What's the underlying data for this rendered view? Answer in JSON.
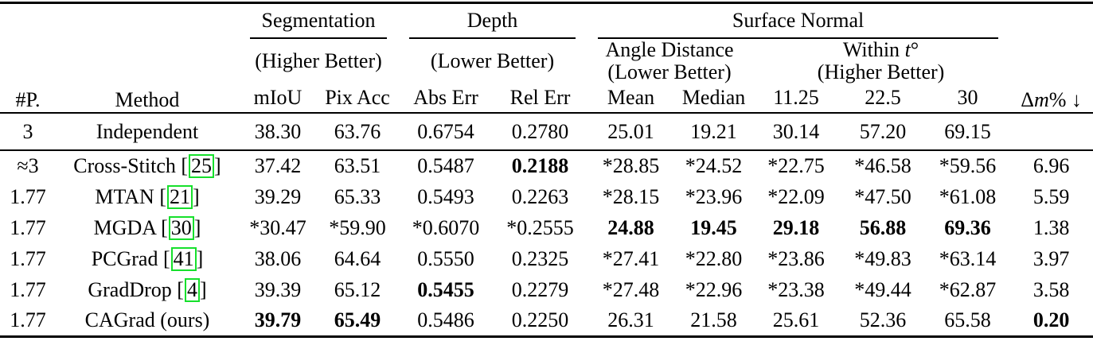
{
  "header": {
    "params": "#P.",
    "method": "Method",
    "segmentation": {
      "title": "Segmentation",
      "direction": "(Higher Better)",
      "cols": [
        "mIoU",
        "Pix Acc"
      ]
    },
    "depth": {
      "title": "Depth",
      "direction": "(Lower Better)",
      "cols": [
        "Abs Err",
        "Rel Err"
      ]
    },
    "surface_normal": {
      "title": "Surface Normal",
      "angle_distance": {
        "line1": "Angle Distance",
        "line2": "(Lower Better)",
        "cols": [
          "Mean",
          "Median"
        ]
      },
      "within_t": {
        "pre": "Within ",
        "var": "t",
        "post": "°",
        "line2": "(Higher Better)",
        "cols": [
          "11.25",
          "22.5",
          "30"
        ]
      }
    },
    "delta_m": {
      "prefix": "Δ",
      "var": "m",
      "suffix": "% ↓"
    }
  },
  "rows": [
    {
      "params": "3",
      "method": {
        "text": "Independent",
        "cite": null,
        "close": ""
      },
      "values": [
        "38.30",
        "63.76",
        "0.6754",
        "0.2780",
        "25.01",
        "19.21",
        "30.14",
        "57.20",
        "69.15",
        ""
      ],
      "bold": [],
      "rule_after": true
    },
    {
      "params": "≈3",
      "method": {
        "text": "Cross-Stitch [",
        "cite": "25",
        "close": "]"
      },
      "values": [
        "37.42",
        "63.51",
        "0.5487",
        "0.2188",
        "*28.85",
        "*24.52",
        "*22.75",
        "*46.58",
        "*59.56",
        "6.96"
      ],
      "bold": [
        3
      ],
      "rule_after": false
    },
    {
      "params": "1.77",
      "method": {
        "text": "MTAN [",
        "cite": "21",
        "close": "]"
      },
      "values": [
        "39.29",
        "65.33",
        "0.5493",
        "0.2263",
        "*28.15",
        "*23.96",
        "*22.09",
        "*47.50",
        "*61.08",
        "5.59"
      ],
      "bold": [],
      "rule_after": false
    },
    {
      "params": "1.77",
      "method": {
        "text": "MGDA [",
        "cite": "30",
        "close": "]"
      },
      "values": [
        "*30.47",
        "*59.90",
        "*0.6070",
        "*0.2555",
        "24.88",
        "19.45",
        "29.18",
        "56.88",
        "69.36",
        "1.38"
      ],
      "bold": [
        4,
        5,
        6,
        7,
        8
      ],
      "rule_after": false
    },
    {
      "params": "1.77",
      "method": {
        "text": "PCGrad [",
        "cite": "41",
        "close": "]"
      },
      "values": [
        "38.06",
        "64.64",
        "0.5550",
        "0.2325",
        "*27.41",
        "*22.80",
        "*23.86",
        "*49.83",
        "*63.14",
        "3.97"
      ],
      "bold": [],
      "rule_after": false
    },
    {
      "params": "1.77",
      "method": {
        "text": "GradDrop [",
        "cite": "4",
        "close": "]"
      },
      "values": [
        "39.39",
        "65.12",
        "0.5455",
        "0.2279",
        "*27.48",
        "*22.96",
        "*23.38",
        "*49.44",
        "*62.87",
        "3.58"
      ],
      "bold": [
        2
      ],
      "rule_after": false
    },
    {
      "params": "1.77",
      "method": {
        "text": "CAGrad (ours)",
        "cite": null,
        "close": ""
      },
      "values": [
        "39.79",
        "65.49",
        "0.5486",
        "0.2250",
        "26.31",
        "21.58",
        "25.61",
        "52.36",
        "65.58",
        "0.20"
      ],
      "bold": [
        0,
        1,
        9
      ],
      "rule_after": false
    }
  ],
  "colors": {
    "citation_box": "#16e02c",
    "text": "#000000",
    "background": "#ffffff"
  }
}
